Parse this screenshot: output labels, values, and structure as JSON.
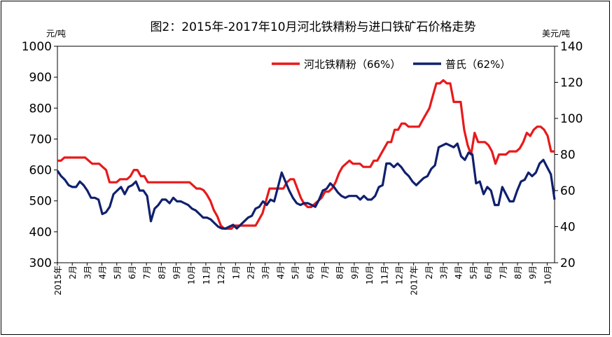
{
  "chart_data": {
    "type": "line",
    "title": "图2：2015年-2017年10月河北铁精粉与进口铁矿石价格走势",
    "ylabel_left": "元/吨",
    "ylabel_right": "美元/吨",
    "ylim_left": [
      300,
      1000
    ],
    "yticks_left": [
      300,
      400,
      500,
      600,
      700,
      800,
      900,
      1000
    ],
    "ylim_right": [
      20,
      140
    ],
    "yticks_right": [
      20,
      40,
      60,
      80,
      100,
      120,
      140
    ],
    "x_labels": [
      "2015年",
      "2月",
      "3月",
      "4月",
      "5月",
      "6月",
      "7月",
      "8月",
      "9月",
      "10月",
      "11月",
      "12月",
      "1月",
      "2月",
      "3月",
      "4月",
      "5月",
      "6月",
      "7月",
      "8月",
      "9月",
      "10月",
      "11月",
      "12月",
      "2017年",
      "2月",
      "3月",
      "4月",
      "5月",
      "6月",
      "7月",
      "8月",
      "9月",
      "10月"
    ],
    "legend_position": "top-right",
    "colors": {
      "hebei": "#e8191b",
      "platts": "#10206e"
    },
    "series": [
      {
        "name": "河北铁精粉（66%）",
        "axis": "left",
        "color": "#e8191b",
        "values": [
          630,
          630,
          640,
          640,
          640,
          640,
          640,
          640,
          640,
          630,
          620,
          620,
          620,
          610,
          600,
          560,
          560,
          560,
          570,
          570,
          570,
          580,
          600,
          600,
          580,
          580,
          560,
          560,
          560,
          560,
          560,
          560,
          560,
          560,
          560,
          560,
          560,
          560,
          560,
          550,
          540,
          540,
          535,
          520,
          500,
          470,
          450,
          420,
          410,
          410,
          410,
          420,
          420,
          420,
          420,
          420,
          420,
          420,
          440,
          460,
          500,
          540,
          540,
          540,
          540,
          540,
          560,
          570,
          570,
          540,
          510,
          490,
          480,
          480,
          490,
          500,
          510,
          530,
          530,
          540,
          560,
          590,
          610,
          620,
          630,
          620,
          620,
          620,
          610,
          610,
          610,
          630,
          630,
          650,
          670,
          690,
          690,
          730,
          730,
          750,
          750,
          740,
          740,
          740,
          740,
          760,
          780,
          800,
          840,
          880,
          880,
          890,
          880,
          880,
          820,
          820,
          820,
          730,
          680,
          650,
          720,
          690,
          690,
          690,
          680,
          660,
          620,
          650,
          650,
          650,
          660,
          660,
          660,
          670,
          690,
          720,
          710,
          730,
          740,
          740,
          730,
          710,
          660,
          660
        ]
      },
      {
        "name": "普氏（62%）",
        "axis": "right",
        "color": "#10206e",
        "values": [
          71,
          68,
          66,
          63,
          62,
          62,
          65,
          63,
          60,
          56,
          56,
          55,
          47,
          48,
          51,
          58,
          60,
          62,
          58,
          62,
          63,
          65,
          60,
          60,
          57,
          43,
          50,
          52,
          55,
          55,
          53,
          56,
          54,
          54,
          53,
          52,
          50,
          49,
          47,
          45,
          45,
          44,
          42,
          40,
          39,
          39,
          40,
          41,
          39,
          41,
          43,
          45,
          46,
          50,
          51,
          54,
          52,
          55,
          54,
          62,
          70,
          65,
          60,
          56,
          53,
          52,
          53,
          53,
          52,
          51,
          55,
          60,
          61,
          64,
          62,
          59,
          57,
          56,
          57,
          57,
          57,
          55,
          57,
          55,
          55,
          57,
          62,
          63,
          75,
          75,
          73,
          75,
          73,
          70,
          68,
          65,
          63,
          65,
          67,
          68,
          72,
          74,
          84,
          85,
          86,
          85,
          84,
          86,
          79,
          77,
          81,
          80,
          64,
          65,
          58,
          62,
          60,
          52,
          52,
          62,
          58,
          54,
          54,
          60,
          65,
          66,
          70,
          68,
          70,
          75,
          77,
          73,
          69,
          55
        ]
      }
    ]
  }
}
